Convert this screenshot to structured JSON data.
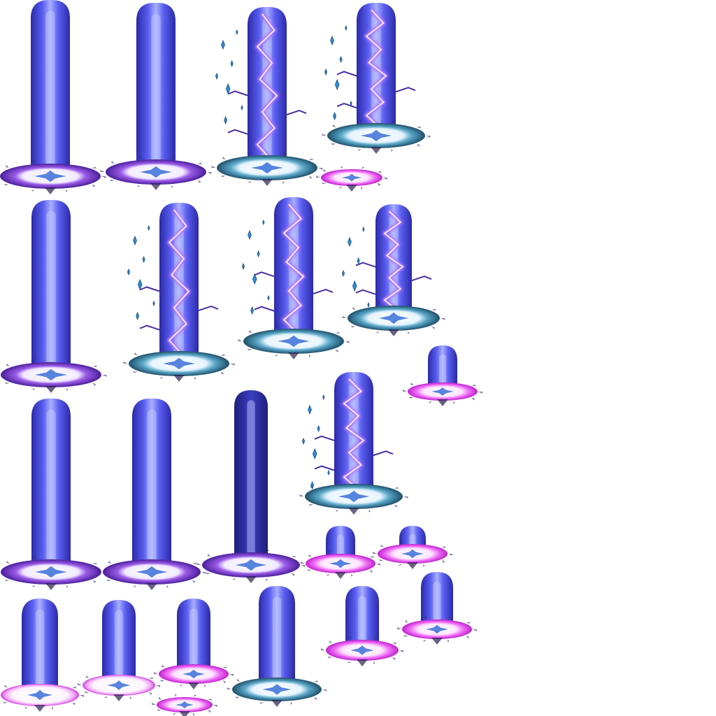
{
  "sheet": {
    "background": "#ffffff"
  },
  "palette": {
    "beam_core": "#a8b0ff",
    "beam_mid": "#5a5ef0",
    "beam_edge": "#2a2aa8",
    "ring_violet": "#7a3fd6",
    "ring_teal": "#2f7f9a",
    "ring_magenta": "#e23cf0",
    "ring_center": "#ffffff",
    "star_blue": "#2d8fd6",
    "lightning": "#f0e6ff",
    "lightning_glow": "#b070ff"
  },
  "frames": [
    {
      "name": "frame-1",
      "beam": "full",
      "ring": "violet",
      "lightning": false,
      "sparkles": false
    },
    {
      "name": "frame-2",
      "beam": "full",
      "ring": "violet",
      "lightning": false,
      "sparkles": false
    },
    {
      "name": "frame-3",
      "beam": "full",
      "ring": "teal",
      "lightning": true,
      "sparkles": true
    },
    {
      "name": "frame-4",
      "beam": "medium",
      "ring": "teal",
      "lightning": true,
      "sparkles": true
    },
    {
      "name": "frame-5",
      "beam": "none",
      "ring": "magenta",
      "lightning": false,
      "sparkles": false
    },
    {
      "name": "frame-6",
      "beam": "full",
      "ring": "violet",
      "lightning": false,
      "sparkles": false
    },
    {
      "name": "frame-7",
      "beam": "full",
      "ring": "teal",
      "lightning": true,
      "sparkles": true
    },
    {
      "name": "frame-8",
      "beam": "full",
      "ring": "teal",
      "lightning": true,
      "sparkles": true
    },
    {
      "name": "frame-9",
      "beam": "medium",
      "ring": "teal",
      "lightning": true,
      "sparkles": true
    },
    {
      "name": "frame-10",
      "beam": "small",
      "ring": "magenta",
      "lightning": false,
      "sparkles": false
    },
    {
      "name": "frame-11",
      "beam": "full",
      "ring": "violet",
      "lightning": false,
      "sparkles": false
    },
    {
      "name": "frame-12",
      "beam": "full",
      "ring": "violet",
      "lightning": false,
      "sparkles": false
    },
    {
      "name": "frame-13",
      "beam": "full",
      "ring": "violet",
      "lightning": false,
      "sparkles": false
    },
    {
      "name": "frame-14",
      "beam": "medium",
      "ring": "teal",
      "lightning": true,
      "sparkles": true
    },
    {
      "name": "frame-15",
      "beam": "small",
      "ring": "magenta",
      "lightning": false,
      "sparkles": false
    },
    {
      "name": "frame-16",
      "beam": "small",
      "ring": "magenta",
      "lightning": false,
      "sparkles": false
    },
    {
      "name": "frame-17",
      "beam": "medium",
      "ring": "white",
      "lightning": false,
      "sparkles": false
    },
    {
      "name": "frame-18",
      "beam": "medium",
      "ring": "white",
      "lightning": false,
      "sparkles": false
    },
    {
      "name": "frame-19",
      "beam": "medium",
      "ring": "magenta",
      "lightning": false,
      "sparkles": false
    },
    {
      "name": "frame-20",
      "beam": "none",
      "ring": "magenta",
      "lightning": false,
      "sparkles": false
    },
    {
      "name": "frame-21",
      "beam": "medium",
      "ring": "teal",
      "lightning": false,
      "sparkles": false
    },
    {
      "name": "frame-22",
      "beam": "medium",
      "ring": "magenta",
      "lightning": false,
      "sparkles": false
    },
    {
      "name": "frame-23",
      "beam": "medium",
      "ring": "magenta",
      "lightning": false,
      "sparkles": false
    }
  ]
}
